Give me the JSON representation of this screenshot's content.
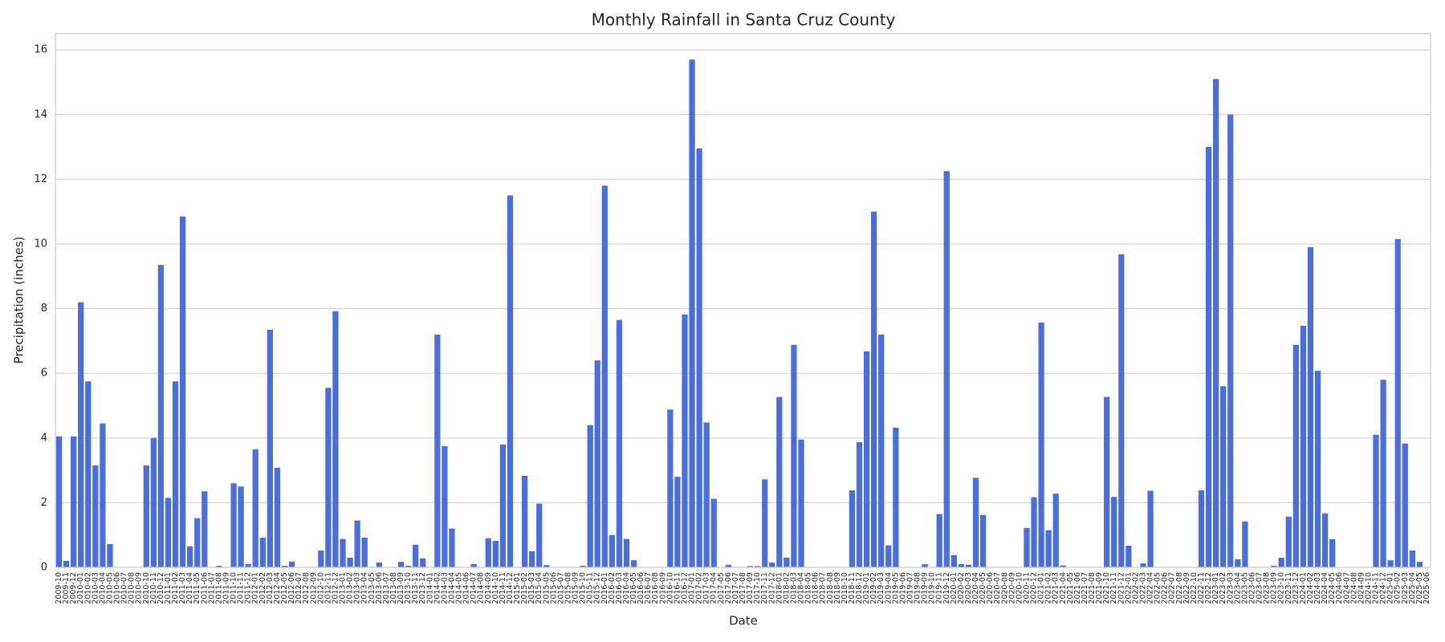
{
  "chart_data": {
    "type": "bar",
    "title": "Monthly Rainfall in Santa Cruz County",
    "x_label": "Date",
    "y_label": "Precipitation (inches)",
    "categories": [
      "2009-10",
      "2009-11",
      "2009-12",
      "2010-01",
      "2010-02",
      "2010-03",
      "2010-04",
      "2010-05",
      "2010-06",
      "2010-07",
      "2010-08",
      "2010-09",
      "2010-10",
      "2010-11",
      "2010-12",
      "2011-01",
      "2011-02",
      "2011-03",
      "2011-04",
      "2011-05",
      "2011-06",
      "2011-07",
      "2011-08",
      "2011-09",
      "2011-10",
      "2011-11",
      "2011-12",
      "2012-01",
      "2012-02",
      "2012-03",
      "2012-04",
      "2012-05",
      "2012-06",
      "2012-07",
      "2012-08",
      "2012-09",
      "2012-10",
      "2012-11",
      "2012-12",
      "2013-01",
      "2013-02",
      "2013-03",
      "2013-04",
      "2013-05",
      "2013-06",
      "2013-07",
      "2013-08",
      "2013-09",
      "2013-10",
      "2013-11",
      "2013-12",
      "2014-01",
      "2014-02",
      "2014-03",
      "2014-04",
      "2014-05",
      "2014-06",
      "2014-07",
      "2014-08",
      "2014-09",
      "2014-10",
      "2014-11",
      "2014-12",
      "2015-01",
      "2015-02",
      "2015-03",
      "2015-04",
      "2015-05",
      "2015-06",
      "2015-07",
      "2015-08",
      "2015-09",
      "2015-10",
      "2015-11",
      "2015-12",
      "2016-01",
      "2016-02",
      "2016-03",
      "2016-04",
      "2016-05",
      "2016-06",
      "2016-07",
      "2016-08",
      "2016-09",
      "2016-10",
      "2016-11",
      "2016-12",
      "2017-01",
      "2017-02",
      "2017-03",
      "2017-04",
      "2017-05",
      "2017-06",
      "2017-07",
      "2017-08",
      "2017-09",
      "2017-10",
      "2017-11",
      "2017-12",
      "2018-01",
      "2018-02",
      "2018-03",
      "2018-04",
      "2018-05",
      "2018-06",
      "2018-07",
      "2018-08",
      "2018-09",
      "2018-10",
      "2018-11",
      "2018-12",
      "2019-01",
      "2019-02",
      "2019-03",
      "2019-04",
      "2019-05",
      "2019-06",
      "2019-07",
      "2019-08",
      "2019-09",
      "2019-10",
      "2019-11",
      "2019-12",
      "2020-01",
      "2020-02",
      "2020-03",
      "2020-04",
      "2020-05",
      "2020-06",
      "2020-07",
      "2020-08",
      "2020-09",
      "2020-10",
      "2020-11",
      "2020-12",
      "2021-01",
      "2021-02",
      "2021-03",
      "2021-04",
      "2021-05",
      "2021-06",
      "2021-07",
      "2021-08",
      "2021-09",
      "2021-10",
      "2021-11",
      "2021-12",
      "2022-01",
      "2022-02",
      "2022-03",
      "2022-04",
      "2022-05",
      "2022-06",
      "2022-07",
      "2022-08",
      "2022-09",
      "2022-10",
      "2022-11",
      "2022-12",
      "2023-01",
      "2023-02",
      "2023-03",
      "2023-04",
      "2023-05",
      "2023-06",
      "2023-07",
      "2023-08",
      "2023-09",
      "2023-10",
      "2023-11",
      "2023-12",
      "2024-01",
      "2024-02",
      "2024-03",
      "2024-04",
      "2024-05",
      "2024-06",
      "2024-07",
      "2024-08",
      "2024-09",
      "2024-10",
      "2024-11",
      "2024-12",
      "2025-01",
      "2025-02",
      "2025-03",
      "2025-04",
      "2025-05",
      "2025-06"
    ],
    "values": [
      4.05,
      0.2,
      4.05,
      8.2,
      5.75,
      3.15,
      4.45,
      0.72,
      0,
      0,
      0,
      0,
      3.15,
      4.0,
      9.35,
      2.15,
      5.75,
      10.85,
      0.65,
      1.52,
      2.35,
      0,
      0.05,
      0,
      2.6,
      2.5,
      0.1,
      3.65,
      0.92,
      7.35,
      3.08,
      0.05,
      0.18,
      0,
      0,
      0,
      0.52,
      5.55,
      7.92,
      0.88,
      0.3,
      1.45,
      0.92,
      0,
      0.15,
      0,
      0,
      0.17,
      0.05,
      0.7,
      0.28,
      0,
      7.2,
      3.75,
      1.2,
      0,
      0,
      0.1,
      0,
      0.9,
      0.82,
      3.8,
      11.5,
      0,
      2.83,
      0.5,
      1.97,
      0.07,
      0,
      0,
      0,
      0,
      0.05,
      4.4,
      6.4,
      11.8,
      1.0,
      7.65,
      0.88,
      0.22,
      0,
      0,
      0,
      0,
      4.88,
      2.8,
      7.82,
      15.7,
      12.95,
      4.48,
      2.12,
      0,
      0.08,
      0,
      0,
      0.04,
      0.04,
      2.72,
      0.15,
      5.27,
      0.3,
      6.88,
      3.95,
      0,
      0,
      0,
      0,
      0,
      0,
      2.38,
      3.87,
      6.68,
      11.0,
      7.2,
      0.68,
      4.32,
      0,
      0,
      0,
      0.1,
      0,
      1.65,
      12.25,
      0.38,
      0.1,
      0.08,
      2.77,
      1.62,
      0,
      0,
      0,
      0,
      0,
      1.22,
      2.17,
      7.57,
      1.15,
      2.28,
      0.06,
      0,
      0,
      0,
      0,
      0,
      5.27,
      2.18,
      9.68,
      0.67,
      0,
      0.12,
      2.37,
      0,
      0,
      0,
      0,
      0,
      0,
      2.38,
      13.0,
      15.1,
      5.6,
      14.0,
      0.25,
      1.42,
      0,
      0,
      0,
      0.05,
      0.3,
      1.57,
      6.88,
      7.47,
      9.9,
      6.08,
      1.67,
      0.87,
      0,
      0,
      0,
      0,
      0,
      4.1,
      5.8,
      0.22,
      10.15,
      3.83,
      0.52,
      0.17,
      0
    ],
    "color": "#4a6fdc",
    "ylim": [
      0,
      16.5
    ],
    "yticks": [
      0,
      2,
      4,
      6,
      8,
      10,
      12,
      14,
      16
    ],
    "grid": true
  }
}
